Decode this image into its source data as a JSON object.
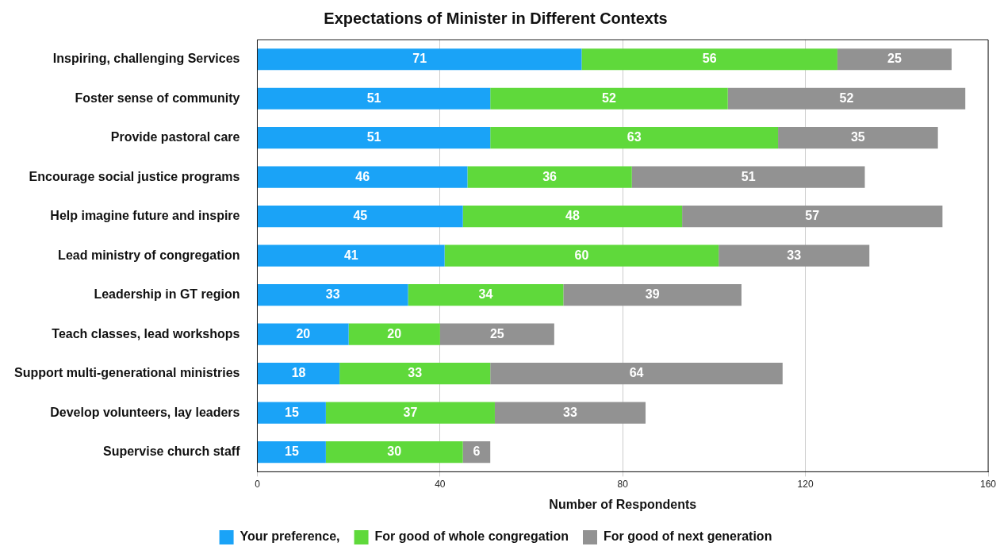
{
  "chart_data": {
    "type": "bar",
    "title": "Expectations of Minister in Different Contexts",
    "xlabel": "Number of Respondents",
    "orientation": "horizontal",
    "stacked": true,
    "data_labels": true,
    "grid": "x",
    "legend": "bottom",
    "categories": [
      "Inspiring, challenging Services",
      "Foster sense of community",
      "Provide pastoral care",
      "Encourage social justice programs",
      "Help imagine future and inspire",
      "Lead ministry of congregation",
      "Leadership in GT region",
      "Teach classes, lead workshops",
      "Support multi-generational ministries",
      "Develop volunteers, lay leaders",
      "Supervise church staff"
    ],
    "series": [
      {
        "name": "Your preference,",
        "color": "#1aa3f7",
        "values": [
          71,
          51,
          51,
          46,
          45,
          41,
          33,
          20,
          18,
          15,
          15
        ]
      },
      {
        "name": "For good of whole congregation",
        "color": "#5fd93b",
        "values": [
          56,
          52,
          63,
          36,
          48,
          60,
          34,
          20,
          33,
          37,
          30
        ]
      },
      {
        "name": "For good of next generation",
        "color": "#929292",
        "values": [
          25,
          52,
          35,
          51,
          57,
          33,
          39,
          25,
          64,
          33,
          6
        ]
      }
    ],
    "xlim": [
      0,
      160
    ],
    "xticks": [
      0,
      40,
      80,
      120,
      160
    ]
  }
}
